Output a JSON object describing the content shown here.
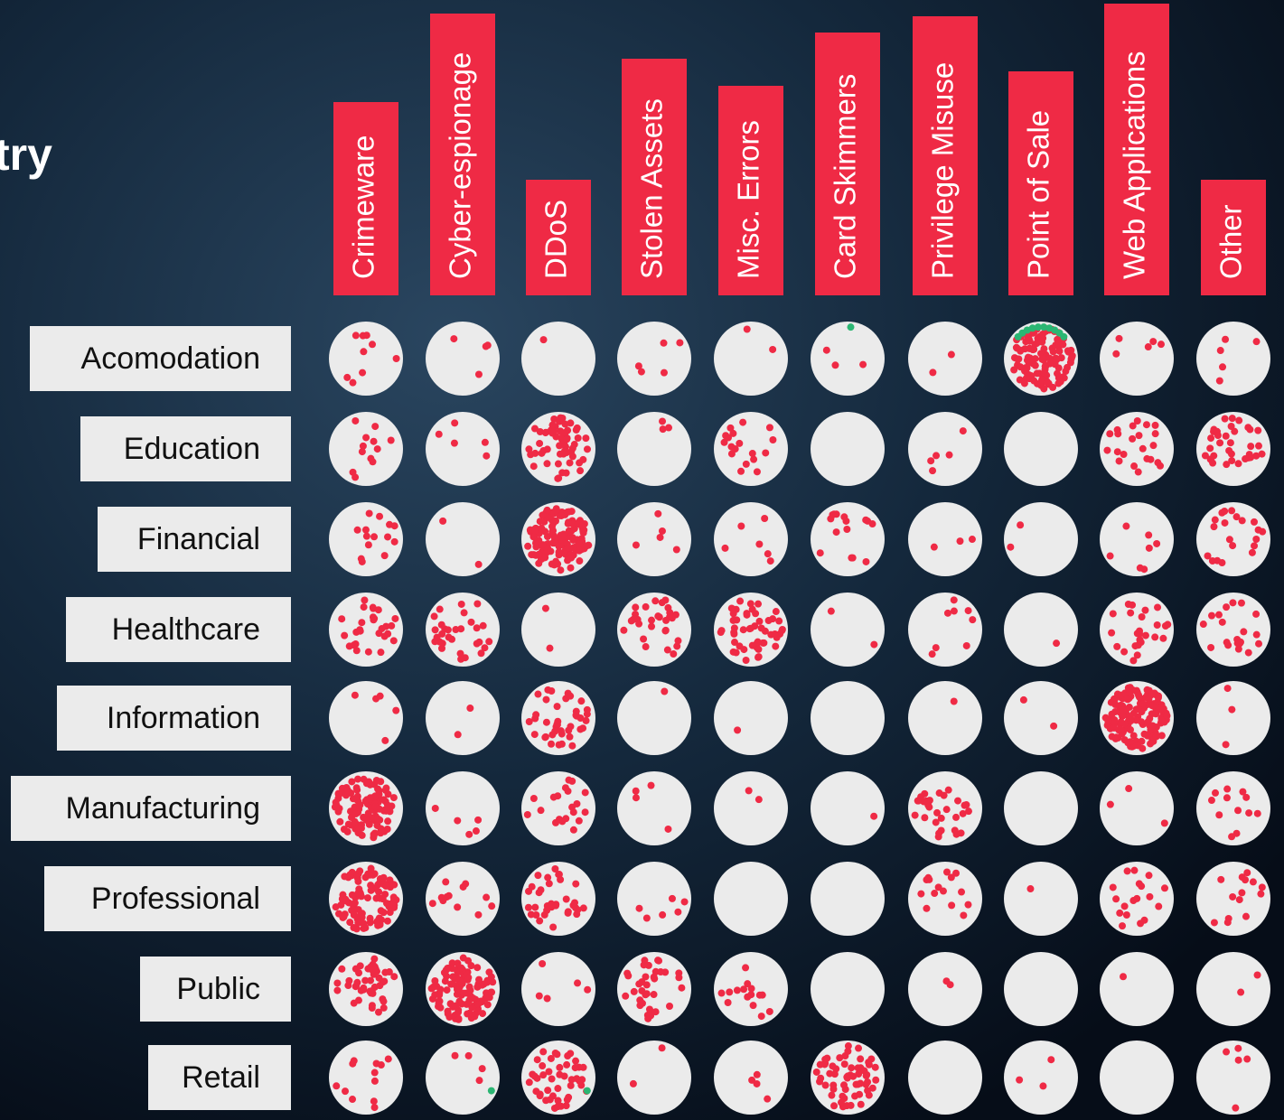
{
  "chart_data": {
    "type": "dot-matrix",
    "title": "try",
    "color": "#ef2a45",
    "secondary_color": "#2bb673",
    "categories": [
      "Crimeware",
      "Cyber-espionage",
      "DDoS",
      "Stolen Assets",
      "Misc. Errors",
      "Card Skimmers",
      "Privilege Misuse",
      "Point of Sale",
      "Web Applications",
      "Other"
    ],
    "series": [
      {
        "name": "Acomodation",
        "values": [
          9,
          4,
          1,
          5,
          2,
          3,
          2,
          120,
          5,
          5
        ],
        "secondary_values": [
          0,
          0,
          0,
          0,
          0,
          1,
          0,
          10,
          0,
          0
        ]
      },
      {
        "name": "Education",
        "values": [
          12,
          5,
          60,
          3,
          18,
          0,
          5,
          0,
          22,
          35
        ],
        "secondary_values": [
          0,
          0,
          0,
          0,
          0,
          0,
          0,
          0,
          0,
          0
        ]
      },
      {
        "name": "Financial",
        "values": [
          14,
          2,
          150,
          5,
          6,
          15,
          3,
          2,
          7,
          20
        ],
        "secondary_values": [
          0,
          0,
          0,
          0,
          0,
          0,
          0,
          0,
          0,
          0
        ]
      },
      {
        "name": "Healthcare",
        "values": [
          28,
          30,
          2,
          30,
          50,
          2,
          8,
          1,
          25,
          20
        ],
        "secondary_values": [
          0,
          0,
          0,
          0,
          0,
          0,
          0,
          0,
          0,
          0
        ]
      },
      {
        "name": "Information",
        "values": [
          5,
          2,
          40,
          1,
          1,
          0,
          1,
          2,
          150,
          3
        ],
        "secondary_values": [
          0,
          0,
          0,
          0,
          0,
          0,
          0,
          0,
          0,
          0
        ]
      },
      {
        "name": "Manufacturing",
        "values": [
          110,
          5,
          20,
          4,
          2,
          1,
          30,
          0,
          3,
          12
        ],
        "secondary_values": [
          0,
          0,
          0,
          0,
          0,
          0,
          0,
          0,
          0,
          0
        ]
      },
      {
        "name": "Professional",
        "values": [
          100,
          12,
          35,
          6,
          0,
          0,
          15,
          1,
          18,
          14
        ],
        "secondary_values": [
          0,
          0,
          0,
          0,
          0,
          0,
          0,
          0,
          0,
          0
        ]
      },
      {
        "name": "Public",
        "values": [
          45,
          110,
          5,
          35,
          15,
          0,
          2,
          0,
          1,
          2
        ],
        "secondary_values": [
          0,
          0,
          0,
          0,
          0,
          0,
          0,
          0,
          0,
          0
        ]
      },
      {
        "name": "Retail",
        "values": [
          12,
          4,
          45,
          2,
          4,
          60,
          0,
          3,
          0,
          5
        ],
        "secondary_values": [
          0,
          1,
          1,
          0,
          0,
          0,
          0,
          0,
          0,
          0
        ]
      }
    ]
  }
}
